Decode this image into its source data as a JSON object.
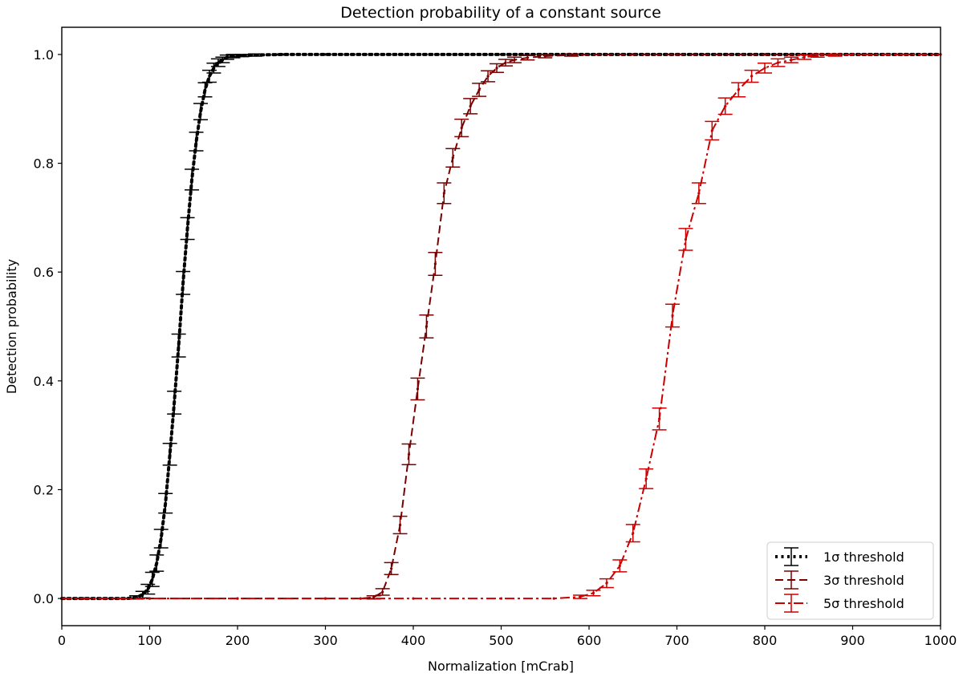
{
  "chart_data": {
    "type": "line",
    "title": "Detection probability of a constant source",
    "xlabel": "Normalization [mCrab]",
    "ylabel": "Detection probability",
    "xlim": [
      0,
      1000
    ],
    "ylim": [
      -0.05,
      1.05
    ],
    "x_ticks": [
      0,
      100,
      200,
      300,
      400,
      500,
      600,
      700,
      800,
      900,
      1000
    ],
    "x_tick_labels": [
      "0",
      "100",
      "200",
      "300",
      "400",
      "500",
      "600",
      "700",
      "800",
      "900",
      "1000"
    ],
    "y_ticks": [
      0.0,
      0.2,
      0.4,
      0.6,
      0.8,
      1.0
    ],
    "y_tick_labels": [
      "0.0",
      "0.2",
      "0.4",
      "0.6",
      "0.8",
      "1.0"
    ],
    "grid": false,
    "legend_position": "lower-right",
    "series": [
      {
        "name": "1σ threshold",
        "color": "#000000",
        "linestyle": "dotted",
        "x": [
          0,
          25,
          50,
          75,
          85,
          92,
          98,
          103,
          108,
          113,
          118,
          123,
          128,
          133,
          138,
          143,
          148,
          153,
          158,
          163,
          168,
          173,
          178,
          183,
          188,
          195,
          205,
          220,
          250,
          300,
          400,
          500,
          600,
          700,
          800,
          900,
          1000
        ],
        "y": [
          0.0,
          0.0,
          0.0,
          0.0,
          0.002,
          0.007,
          0.017,
          0.035,
          0.065,
          0.11,
          0.175,
          0.265,
          0.36,
          0.465,
          0.58,
          0.68,
          0.77,
          0.84,
          0.895,
          0.935,
          0.96,
          0.975,
          0.985,
          0.99,
          0.995,
          0.997,
          0.998,
          0.999,
          1.0,
          1.0,
          1.0,
          1.0,
          1.0,
          1.0,
          1.0,
          1.0,
          1.0
        ],
        "err": [
          0,
          0,
          0,
          0,
          0.003,
          0.006,
          0.009,
          0.013,
          0.015,
          0.017,
          0.018,
          0.02,
          0.021,
          0.021,
          0.021,
          0.02,
          0.019,
          0.017,
          0.015,
          0.013,
          0.011,
          0.009,
          0.007,
          0.005,
          0.004,
          0.003,
          0.002,
          0.002,
          0.001,
          0,
          0,
          0,
          0,
          0,
          0,
          0,
          0
        ]
      },
      {
        "name": "3σ threshold",
        "color": "#7b0000",
        "linestyle": "dashed",
        "x": [
          0,
          100,
          200,
          300,
          340,
          355,
          365,
          375,
          385,
          395,
          405,
          415,
          425,
          435,
          445,
          455,
          465,
          475,
          485,
          495,
          505,
          515,
          530,
          550,
          580,
          610,
          650,
          700,
          800,
          900,
          1000
        ],
        "y": [
          0.0,
          0.0,
          0.0,
          0.0,
          0.0,
          0.002,
          0.012,
          0.055,
          0.135,
          0.265,
          0.385,
          0.5,
          0.615,
          0.745,
          0.81,
          0.865,
          0.905,
          0.935,
          0.96,
          0.975,
          0.985,
          0.99,
          0.994,
          0.997,
          0.999,
          1.0,
          1.0,
          1.0,
          1.0,
          1.0,
          1.0
        ],
        "err": [
          0,
          0,
          0,
          0,
          0,
          0.003,
          0.006,
          0.011,
          0.016,
          0.019,
          0.02,
          0.021,
          0.021,
          0.019,
          0.017,
          0.016,
          0.014,
          0.012,
          0.01,
          0.008,
          0.006,
          0.005,
          0.004,
          0.003,
          0.002,
          0,
          0,
          0,
          0,
          0,
          0
        ]
      },
      {
        "name": "5σ threshold",
        "color": "#cc0000",
        "linestyle": "dashdot",
        "x": [
          0,
          100,
          200,
          300,
          400,
          500,
          560,
          590,
          605,
          620,
          635,
          650,
          665,
          680,
          695,
          710,
          725,
          740,
          755,
          770,
          785,
          800,
          815,
          830,
          845,
          860,
          880,
          900,
          950,
          1000
        ],
        "y": [
          0.0,
          0.0,
          0.0,
          0.0,
          0.0,
          0.0,
          0.0,
          0.003,
          0.01,
          0.028,
          0.06,
          0.12,
          0.22,
          0.33,
          0.52,
          0.66,
          0.745,
          0.86,
          0.905,
          0.935,
          0.96,
          0.975,
          0.985,
          0.99,
          0.995,
          0.998,
          0.999,
          1.0,
          1.0,
          1.0
        ],
        "err": [
          0,
          0,
          0,
          0,
          0,
          0,
          0,
          0.003,
          0.005,
          0.008,
          0.011,
          0.016,
          0.018,
          0.02,
          0.021,
          0.02,
          0.019,
          0.017,
          0.015,
          0.013,
          0.011,
          0.009,
          0.007,
          0.005,
          0.004,
          0.003,
          0.002,
          0,
          0,
          0
        ]
      }
    ]
  }
}
